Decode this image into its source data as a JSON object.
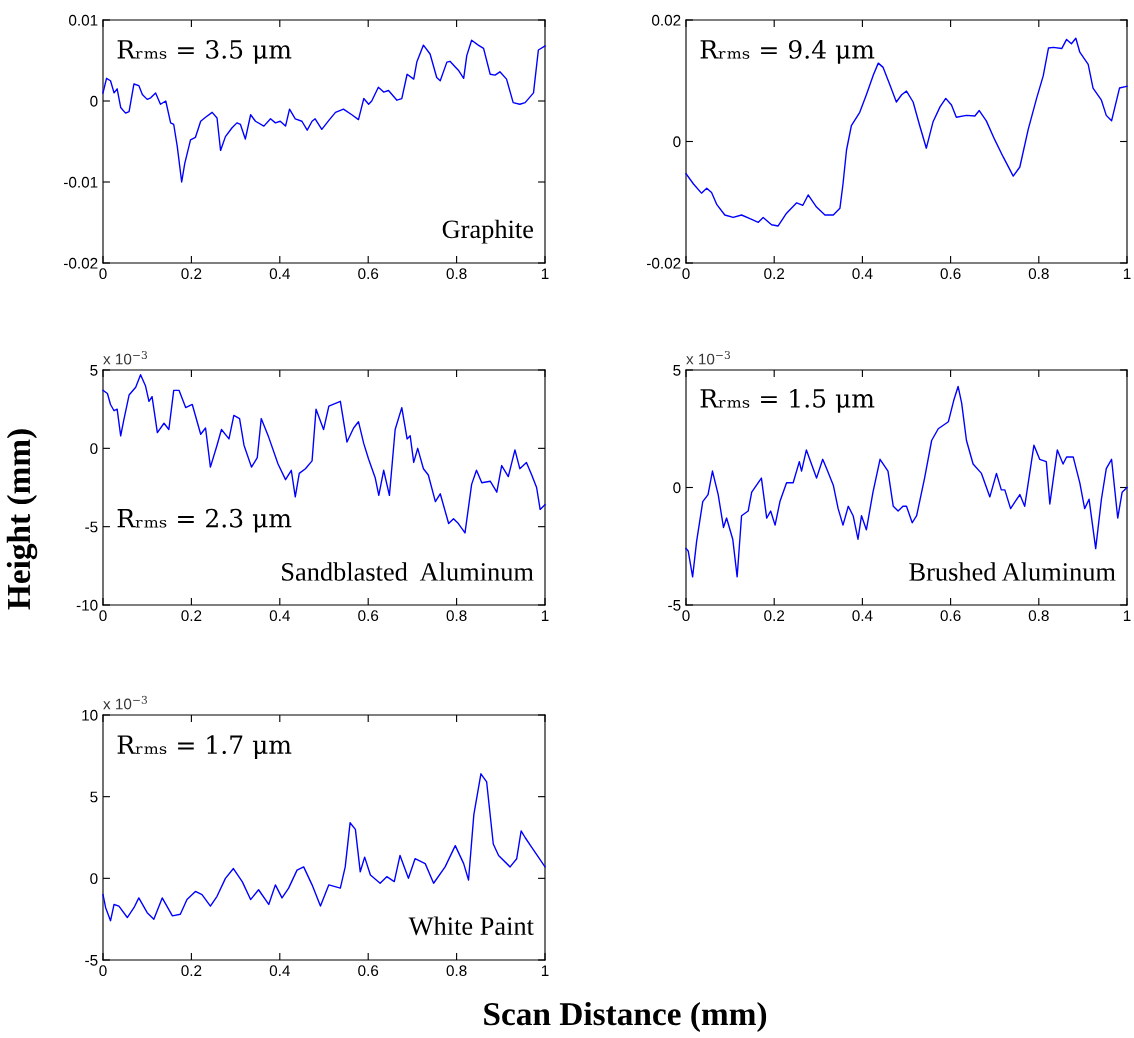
{
  "chart_data": [
    {
      "type": "line",
      "annotations": [
        "Rᵣₘₛ = 3.5 μm",
        "Graphite"
      ],
      "xlim": [
        0,
        1
      ],
      "xticks": [
        0,
        0.2,
        0.4,
        0.6,
        0.8,
        1
      ],
      "ylim": [
        -0.02,
        0.01
      ],
      "yticks": [
        -0.02,
        -0.01,
        0,
        0.01
      ],
      "series": [
        {
          "color": "#0000ff",
          "x": [
            0,
            0.008,
            0.017,
            0.025,
            0.032,
            0.04,
            0.051,
            0.059,
            0.07,
            0.081,
            0.089,
            0.1,
            0.108,
            0.119,
            0.13,
            0.142,
            0.153,
            0.16,
            0.168,
            0.178,
            0.185,
            0.198,
            0.209,
            0.221,
            0.232,
            0.247,
            0.258,
            0.266,
            0.277,
            0.292,
            0.303,
            0.311,
            0.322,
            0.334,
            0.345,
            0.364,
            0.379,
            0.39,
            0.401,
            0.413,
            0.422,
            0.435,
            0.45,
            0.462,
            0.473,
            0.48,
            0.495,
            0.511,
            0.526,
            0.544,
            0.563,
            0.578,
            0.59,
            0.601,
            0.608,
            0.623,
            0.635,
            0.646,
            0.665,
            0.676,
            0.688,
            0.703,
            0.71,
            0.725,
            0.74,
            0.755,
            0.763,
            0.778,
            0.785,
            0.797,
            0.804,
            0.816,
            0.823,
            0.834,
            0.849,
            0.861,
            0.876,
            0.887,
            0.898,
            0.913,
            0.928,
            0.943,
            0.955,
            0.974,
            0.985,
            1.0
          ],
          "values": [
            0.001,
            0.0028,
            0.0025,
            0.001,
            0.0015,
            -0.0008,
            -0.0015,
            -0.0013,
            0.0021,
            0.0019,
            0.0008,
            0.0002,
            0.0004,
            0.001,
            -0.0004,
            0.0,
            -0.0027,
            -0.0029,
            -0.0056,
            -0.01,
            -0.0077,
            -0.0048,
            -0.0045,
            -0.0025,
            -0.002,
            -0.0014,
            -0.0021,
            -0.0061,
            -0.0044,
            -0.0033,
            -0.0027,
            -0.0029,
            -0.0047,
            -0.0017,
            -0.0025,
            -0.0031,
            -0.0022,
            -0.0027,
            -0.0025,
            -0.0031,
            -0.001,
            -0.0022,
            -0.0025,
            -0.0036,
            -0.0025,
            -0.0022,
            -0.0035,
            -0.0024,
            -0.0014,
            -0.001,
            -0.0017,
            -0.0023,
            0.0003,
            -0.0004,
            0.0,
            0.0017,
            0.0011,
            0.0013,
            0.0001,
            0.0003,
            0.0033,
            0.0027,
            0.0048,
            0.0069,
            0.0058,
            0.0029,
            0.0025,
            0.0048,
            0.0049,
            0.0042,
            0.0038,
            0.0028,
            0.0056,
            0.0075,
            0.0069,
            0.0065,
            0.0033,
            0.0032,
            0.0036,
            0.0027,
            -0.0002,
            -0.0004,
            -0.0002,
            0.001,
            0.0063,
            0.0068
          ]
        }
      ]
    },
    {
      "type": "line",
      "annotations": [
        "Rᵣₘₛ = 9.4 μm"
      ],
      "xlim": [
        0,
        1
      ],
      "xticks": [
        0,
        0.2,
        0.4,
        0.6,
        0.8,
        1
      ],
      "ylim": [
        -0.02,
        0.02
      ],
      "yticks": [
        -0.02,
        0,
        0.02
      ],
      "series": [
        {
          "color": "#0000ff",
          "x": [
            0,
            0.017,
            0.035,
            0.047,
            0.058,
            0.07,
            0.088,
            0.107,
            0.126,
            0.145,
            0.164,
            0.175,
            0.194,
            0.209,
            0.228,
            0.251,
            0.265,
            0.277,
            0.296,
            0.315,
            0.334,
            0.349,
            0.356,
            0.364,
            0.375,
            0.394,
            0.409,
            0.425,
            0.436,
            0.447,
            0.462,
            0.477,
            0.489,
            0.5,
            0.515,
            0.53,
            0.545,
            0.56,
            0.576,
            0.589,
            0.602,
            0.613,
            0.636,
            0.655,
            0.665,
            0.681,
            0.7,
            0.719,
            0.742,
            0.757,
            0.776,
            0.795,
            0.81,
            0.822,
            0.833,
            0.852,
            0.863,
            0.874,
            0.884,
            0.893,
            0.912,
            0.923,
            0.942,
            0.953,
            0.965,
            0.983,
            1.0
          ],
          "values": [
            -0.0053,
            -0.007,
            -0.0085,
            -0.0077,
            -0.0084,
            -0.0104,
            -0.0121,
            -0.0125,
            -0.0121,
            -0.0127,
            -0.0133,
            -0.0125,
            -0.0137,
            -0.0139,
            -0.0118,
            -0.0101,
            -0.0105,
            -0.0088,
            -0.0108,
            -0.0121,
            -0.0121,
            -0.011,
            -0.007,
            -0.0014,
            0.0026,
            0.0048,
            0.0077,
            0.011,
            0.0129,
            0.0122,
            0.0094,
            0.0065,
            0.0077,
            0.0083,
            0.0065,
            0.0026,
            -0.0011,
            0.0032,
            0.0057,
            0.0071,
            0.006,
            0.004,
            0.0043,
            0.0042,
            0.0051,
            0.0034,
            0.0003,
            -0.0025,
            -0.0057,
            -0.0042,
            0.002,
            0.0071,
            0.0108,
            0.0154,
            0.0155,
            0.0153,
            0.0168,
            0.0161,
            0.017,
            0.0147,
            0.0127,
            0.0088,
            0.0068,
            0.0043,
            0.0034,
            0.0088,
            0.0091
          ]
        }
      ]
    },
    {
      "type": "line",
      "ylabel": "Height (mm)",
      "annotations": [
        "x 10$^{−3}$",
        "Rᵣₘₛ = 2.3 μm",
        "Sandblasted  Aluminum"
      ],
      "xlim": [
        0,
        1
      ],
      "xticks": [
        0,
        0.2,
        0.4,
        0.6,
        0.8,
        1
      ],
      "ylim": [
        -10,
        5
      ],
      "yticks": [
        -10,
        -5,
        0,
        5
      ],
      "series": [
        {
          "color": "#0000ff",
          "x": [
            0,
            0.01,
            0.017,
            0.025,
            0.032,
            0.04,
            0.047,
            0.059,
            0.074,
            0.085,
            0.096,
            0.104,
            0.111,
            0.123,
            0.138,
            0.149,
            0.16,
            0.172,
            0.187,
            0.202,
            0.221,
            0.232,
            0.243,
            0.258,
            0.268,
            0.285,
            0.296,
            0.309,
            0.319,
            0.336,
            0.349,
            0.358,
            0.375,
            0.396,
            0.413,
            0.426,
            0.435,
            0.444,
            0.458,
            0.473,
            0.482,
            0.499,
            0.511,
            0.537,
            0.552,
            0.567,
            0.578,
            0.59,
            0.601,
            0.616,
            0.624,
            0.635,
            0.648,
            0.661,
            0.676,
            0.688,
            0.695,
            0.703,
            0.712,
            0.725,
            0.736,
            0.752,
            0.763,
            0.782,
            0.793,
            0.804,
            0.819,
            0.834,
            0.845,
            0.857,
            0.876,
            0.891,
            0.902,
            0.917,
            0.932,
            0.943,
            0.958,
            0.97,
            0.981,
            0.989,
            1.0
          ],
          "values": [
            3.7,
            3.5,
            2.8,
            2.4,
            2.5,
            0.8,
            1.8,
            3.4,
            3.9,
            4.7,
            4.0,
            3.0,
            3.3,
            1.0,
            1.6,
            1.2,
            3.7,
            3.7,
            2.6,
            2.8,
            0.9,
            1.3,
            -1.2,
            0.2,
            1.2,
            0.6,
            2.1,
            1.9,
            0.2,
            -1.2,
            -0.6,
            1.9,
            0.7,
            -1.0,
            -2.0,
            -1.4,
            -3.1,
            -1.6,
            -1.3,
            -0.8,
            2.5,
            1.2,
            2.7,
            3.0,
            0.4,
            1.3,
            1.7,
            0.3,
            -0.7,
            -1.9,
            -3.0,
            -1.4,
            -3.0,
            1.2,
            2.6,
            0.6,
            0.8,
            -0.9,
            0.0,
            -1.3,
            -1.7,
            -3.4,
            -2.9,
            -4.8,
            -4.5,
            -4.8,
            -5.4,
            -2.3,
            -1.4,
            -2.2,
            -2.1,
            -2.8,
            -1.1,
            -1.8,
            -0.1,
            -1.3,
            -0.9,
            -1.7,
            -2.5,
            -3.9,
            -3.6
          ]
        }
      ]
    },
    {
      "type": "line",
      "annotations": [
        "x 10$^{−3}$",
        "Rᵣₘₛ = 1.5 μm",
        "Brushed Aluminum"
      ],
      "xlim": [
        0,
        1
      ],
      "xticks": [
        0,
        0.2,
        0.4,
        0.6,
        0.8,
        1
      ],
      "ylim": [
        -5,
        5
      ],
      "yticks": [
        -5,
        0,
        5
      ],
      "series": [
        {
          "color": "#0000ff",
          "x": [
            0,
            0.005,
            0.015,
            0.024,
            0.038,
            0.05,
            0.06,
            0.073,
            0.085,
            0.092,
            0.106,
            0.116,
            0.126,
            0.141,
            0.149,
            0.171,
            0.183,
            0.192,
            0.202,
            0.213,
            0.228,
            0.243,
            0.257,
            0.262,
            0.273,
            0.296,
            0.31,
            0.319,
            0.334,
            0.345,
            0.356,
            0.368,
            0.379,
            0.39,
            0.398,
            0.409,
            0.424,
            0.44,
            0.458,
            0.47,
            0.481,
            0.492,
            0.5,
            0.513,
            0.523,
            0.541,
            0.557,
            0.572,
            0.595,
            0.607,
            0.617,
            0.625,
            0.636,
            0.651,
            0.67,
            0.689,
            0.704,
            0.715,
            0.723,
            0.736,
            0.757,
            0.768,
            0.789,
            0.802,
            0.817,
            0.825,
            0.842,
            0.855,
            0.863,
            0.878,
            0.893,
            0.904,
            0.914,
            0.929,
            0.942,
            0.953,
            0.965,
            0.979,
            0.989,
            1.0
          ],
          "values": [
            -2.6,
            -2.7,
            -3.8,
            -2.3,
            -0.6,
            -0.3,
            0.7,
            -0.3,
            -1.7,
            -1.3,
            -2.2,
            -3.8,
            -1.2,
            -1.0,
            -0.2,
            0.4,
            -1.3,
            -1.0,
            -1.6,
            -0.6,
            0.2,
            0.2,
            1.1,
            0.7,
            1.6,
            0.4,
            1.2,
            0.8,
            0.1,
            -0.9,
            -1.6,
            -0.8,
            -1.2,
            -2.2,
            -1.2,
            -1.8,
            -0.2,
            1.2,
            0.7,
            -0.8,
            -1.0,
            -0.8,
            -0.8,
            -1.5,
            -1.2,
            0.4,
            2.0,
            2.5,
            2.8,
            3.7,
            4.3,
            3.6,
            2.0,
            1.0,
            0.6,
            -0.4,
            0.6,
            -0.1,
            -0.1,
            -0.9,
            -0.3,
            -0.8,
            1.8,
            1.2,
            1.1,
            -0.7,
            1.6,
            1.0,
            1.3,
            1.3,
            0.2,
            -0.9,
            -0.5,
            -2.6,
            -0.5,
            0.8,
            1.2,
            -1.3,
            -0.2,
            0.0
          ]
        }
      ]
    },
    {
      "type": "line",
      "xlabel": "Scan Distance (mm)",
      "annotations": [
        "x 10$^{−3}$",
        "Rᵣₘₛ = 1.7 μm",
        "White Paint"
      ],
      "xlim": [
        0,
        1
      ],
      "xticks": [
        0,
        0.2,
        0.4,
        0.6,
        0.8,
        1
      ],
      "ylim": [
        -5,
        10
      ],
      "yticks": [
        -5,
        0,
        5,
        10
      ],
      "series": [
        {
          "color": "#0000ff",
          "x": [
            0,
            0.006,
            0.017,
            0.025,
            0.036,
            0.055,
            0.07,
            0.081,
            0.1,
            0.115,
            0.134,
            0.157,
            0.175,
            0.19,
            0.209,
            0.224,
            0.243,
            0.258,
            0.277,
            0.295,
            0.315,
            0.334,
            0.352,
            0.375,
            0.39,
            0.405,
            0.42,
            0.439,
            0.454,
            0.473,
            0.492,
            0.511,
            0.537,
            0.548,
            0.559,
            0.571,
            0.582,
            0.592,
            0.605,
            0.627,
            0.642,
            0.659,
            0.672,
            0.691,
            0.706,
            0.729,
            0.748,
            0.774,
            0.797,
            0.816,
            0.827,
            0.839,
            0.855,
            0.868,
            0.883,
            0.895,
            0.921,
            0.936,
            0.946,
            0.955,
            0.97,
            1.0
          ],
          "values": [
            -1.0,
            -1.8,
            -2.6,
            -1.6,
            -1.7,
            -2.4,
            -1.8,
            -1.2,
            -2.1,
            -2.5,
            -1.2,
            -2.3,
            -2.2,
            -1.3,
            -0.8,
            -1.0,
            -1.7,
            -1.1,
            0.0,
            0.6,
            -0.2,
            -1.3,
            -0.7,
            -1.6,
            -0.4,
            -1.2,
            -0.6,
            0.5,
            0.7,
            -0.4,
            -1.7,
            -0.4,
            -0.6,
            0.7,
            3.4,
            3.0,
            0.4,
            1.3,
            0.2,
            -0.3,
            0.1,
            -0.2,
            1.4,
            0.0,
            1.2,
            0.9,
            -0.3,
            0.7,
            2.0,
            0.9,
            -0.1,
            3.9,
            6.4,
            5.9,
            2.1,
            1.4,
            0.7,
            1.2,
            2.9,
            2.5,
            1.9,
            0.7
          ]
        }
      ]
    }
  ]
}
